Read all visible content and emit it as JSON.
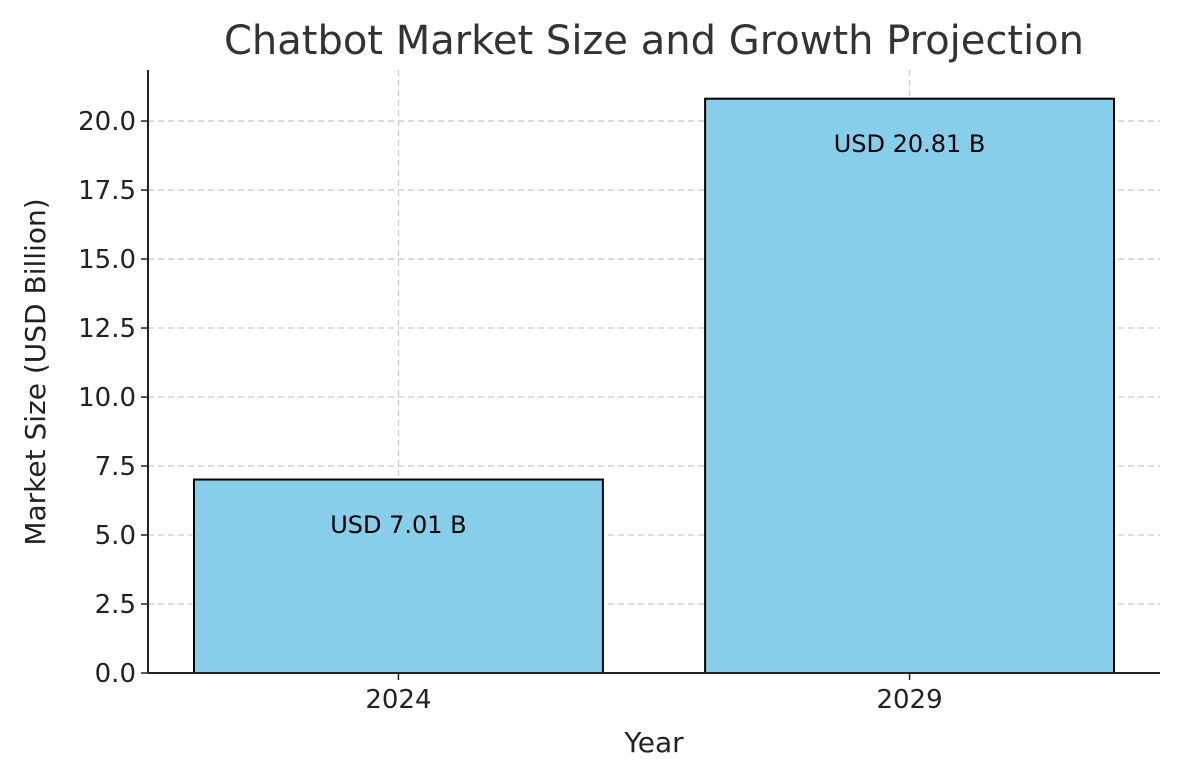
{
  "chart_data": {
    "type": "bar",
    "title": "Chatbot Market Size and Growth Projection",
    "xlabel": "Year",
    "ylabel": "Market Size (USD Billion)",
    "categories": [
      "2024",
      "2029"
    ],
    "values": [
      7.01,
      20.81
    ],
    "data_labels": [
      "USD 7.01 B",
      "USD 20.81 B"
    ],
    "ylim": [
      0,
      21.85
    ],
    "yticks": [
      0.0,
      2.5,
      5.0,
      7.5,
      10.0,
      12.5,
      15.0,
      17.5,
      20.0
    ],
    "ytick_labels": [
      "0.0",
      "2.5",
      "5.0",
      "7.5",
      "10.0",
      "12.5",
      "15.0",
      "17.5",
      "20.0"
    ],
    "grid": true,
    "grid_style": "dashed",
    "colors": {
      "bar": "#87CEEB",
      "edge": "#000000",
      "grid": "#cccccc",
      "title": "#333333"
    }
  }
}
